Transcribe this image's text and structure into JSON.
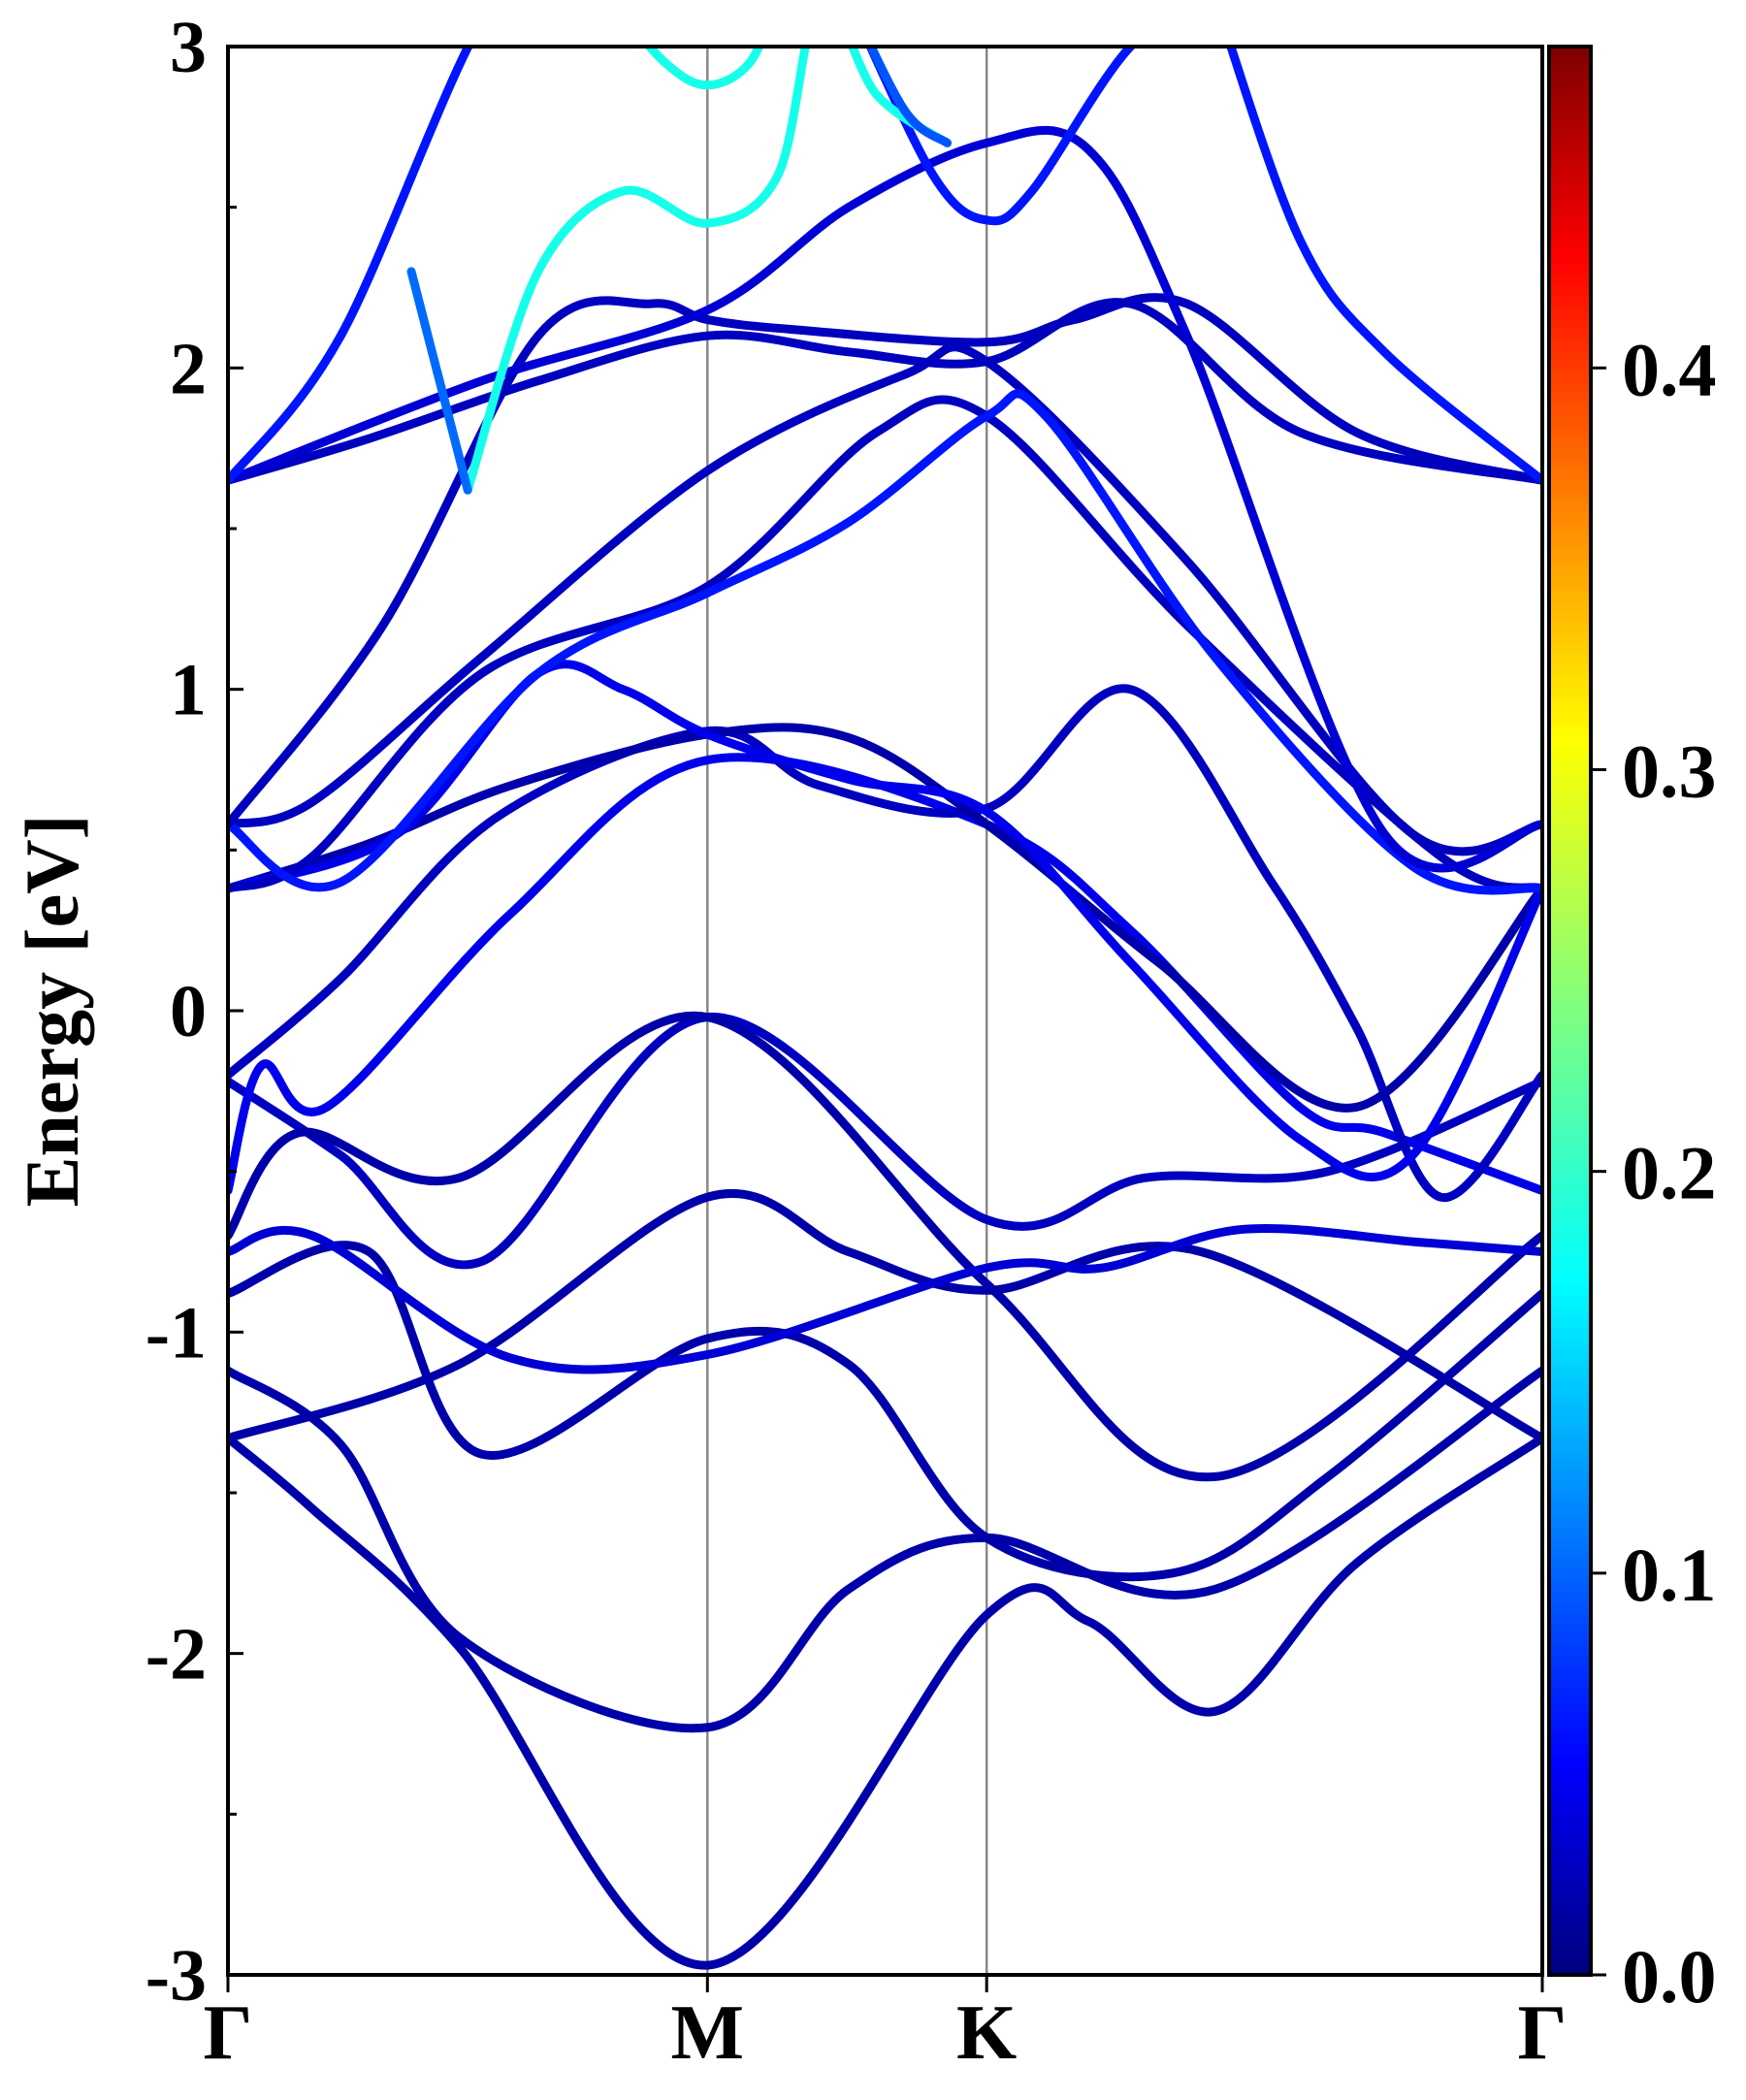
{
  "chart_data": {
    "type": "line",
    "ylabel": "Energy [eV]",
    "ylim": [
      -3,
      3
    ],
    "y_ticks": [
      "-3",
      "-2",
      "-1",
      "0",
      "1",
      "2",
      "3"
    ],
    "x_range": [
      0,
      4.66
    ],
    "x_ticks": [
      {
        "label": "Γ",
        "x": 0
      },
      {
        "label": "M",
        "x": 1.7
      },
      {
        "label": "K",
        "x": 2.69
      },
      {
        "label": "Γ",
        "x": 4.66
      }
    ],
    "colorbar": {
      "min": 0.0,
      "max": 0.48,
      "ticks": [
        "0.0",
        "0.1",
        "0.2",
        "0.3",
        "0.4"
      ],
      "colormap": "jet"
    },
    "series": [
      {
        "c": 0.02,
        "x": [
          0,
          0.82,
          1.7,
          2.2,
          2.69,
          3.45,
          4.66
        ],
        "y": [
          -1.33,
          -1.1,
          -0.58,
          -0.75,
          -0.87,
          -0.75,
          -1.33
        ]
      },
      {
        "c": 0.02,
        "x": [
          0,
          0.4,
          0.82,
          1.7,
          2.2,
          2.69,
          3.5,
          4.66
        ],
        "y": [
          -1.12,
          -1.35,
          -1.95,
          -2.23,
          -1.8,
          -1.64,
          -1.8,
          -1.12
        ]
      },
      {
        "c": 0.02,
        "x": [
          0,
          0.3,
          0.82,
          1.7,
          2.69,
          3.05,
          3.5,
          4.0,
          4.66
        ],
        "y": [
          -1.33,
          -1.55,
          -1.98,
          -2.97,
          -1.88,
          -1.9,
          -2.18,
          -1.72,
          -1.33
        ]
      },
      {
        "c": 0.02,
        "x": [
          0,
          0.5,
          0.9,
          1.7,
          2.2,
          2.69,
          3.35,
          3.9,
          4.66
        ],
        "y": [
          -0.88,
          -0.75,
          -1.38,
          -1.02,
          -1.1,
          -1.64,
          -1.75,
          -1.45,
          -0.88
        ]
      },
      {
        "c": 0.03,
        "x": [
          0,
          0.4,
          0.9,
          1.7,
          2.69,
          3.25,
          3.9,
          4.66
        ],
        "y": [
          -0.22,
          -0.45,
          -0.78,
          -0.02,
          -0.65,
          -0.52,
          -0.5,
          -0.22
        ]
      },
      {
        "c": 0.02,
        "x": [
          0,
          0.25,
          0.82,
          1.7,
          2.69,
          3.5,
          4.66
        ],
        "y": [
          -0.7,
          -0.38,
          -0.52,
          -0.02,
          -0.85,
          -1.45,
          -0.7
        ]
      },
      {
        "c": 0.04,
        "x": [
          0,
          0.3,
          1.0,
          1.7,
          2.69,
          3.1,
          3.6,
          4.22,
          4.66
        ],
        "y": [
          -0.75,
          -0.7,
          -1.08,
          -1.07,
          -0.8,
          -0.8,
          -0.68,
          -0.72,
          -0.75
        ]
      },
      {
        "c": 0.05,
        "x": [
          0,
          0.12,
          0.35,
          1.0,
          1.7,
          2.69,
          3.2,
          3.8,
          4.1,
          4.66
        ],
        "y": [
          -0.56,
          -0.17,
          -0.3,
          0.3,
          0.78,
          0.58,
          0.25,
          -0.3,
          -0.38,
          -0.56
        ]
      },
      {
        "c": 0.03,
        "x": [
          0,
          0.4,
          0.95,
          1.7,
          2.1,
          2.69,
          3.2,
          3.7,
          4.0,
          4.3,
          4.66
        ],
        "y": [
          -0.2,
          0.1,
          0.6,
          0.87,
          0.7,
          0.63,
          1.0,
          0.4,
          -0.05,
          -0.58,
          -0.2
        ]
      },
      {
        "c": 0.02,
        "x": [
          0,
          0.5,
          1.0,
          1.7,
          2.2,
          2.69,
          3.3,
          4.0,
          4.66
        ],
        "y": [
          0.38,
          0.52,
          0.7,
          0.86,
          0.85,
          0.58,
          0.15,
          -0.3,
          0.38
        ]
      },
      {
        "c": 0.05,
        "x": [
          0,
          0.6,
          1.1,
          1.4,
          1.7,
          2.2,
          2.69,
          3.2,
          3.8,
          4.2,
          4.66
        ],
        "y": [
          0.38,
          0.55,
          1.05,
          1.0,
          0.86,
          0.72,
          0.62,
          0.15,
          -0.4,
          -0.45,
          0.38
        ]
      },
      {
        "c": 0.03,
        "x": [
          0,
          0.3,
          0.9,
          1.7,
          2.4,
          2.69,
          3.4,
          4.2,
          4.66
        ],
        "y": [
          0.58,
          0.65,
          1.1,
          1.68,
          1.98,
          2.02,
          1.4,
          0.55,
          0.58
        ]
      },
      {
        "c": 0.03,
        "x": [
          0,
          0.3,
          0.9,
          1.7,
          2.3,
          2.69,
          3.4,
          4.3,
          4.66
        ],
        "y": [
          0.38,
          0.48,
          1.05,
          1.32,
          1.8,
          1.85,
          1.2,
          0.48,
          0.38
        ]
      },
      {
        "c": 0.07,
        "x": [
          0,
          0.4,
          1.1,
          1.7,
          2.2,
          2.69,
          2.9,
          3.5,
          4.2,
          4.66
        ],
        "y": [
          0.58,
          0.4,
          1.05,
          1.3,
          1.52,
          1.85,
          1.85,
          1.1,
          0.45,
          0.38
        ]
      },
      {
        "c": 0.03,
        "x": [
          0,
          0.5,
          1.1,
          1.7,
          2.2,
          2.69,
          3.2,
          3.8,
          4.66
        ],
        "y": [
          1.65,
          1.78,
          1.96,
          2.1,
          2.05,
          2.02,
          2.2,
          1.8,
          1.65
        ]
      },
      {
        "c": 0.03,
        "x": [
          0,
          0.55,
          1.1,
          1.5,
          1.7,
          2.0,
          2.69,
          3.0,
          3.4,
          4.0,
          4.66
        ],
        "y": [
          0.58,
          1.2,
          2.1,
          2.2,
          2.15,
          2.12,
          2.08,
          2.15,
          2.2,
          1.8,
          1.65
        ]
      },
      {
        "c": 0.04,
        "x": [
          0,
          0.9,
          1.7,
          2.2,
          2.69,
          3.05,
          3.4,
          4.1,
          4.66
        ],
        "y": [
          1.65,
          1.96,
          2.18,
          2.5,
          2.7,
          2.68,
          2.1,
          0.55,
          0.58
        ]
      },
      {
        "c": 0.07,
        "x": [
          0,
          0.4,
          0.95,
          1.3,
          1.75
        ],
        "y": [
          1.65,
          2.1,
          3.15,
          3.15,
          3.15
        ]
      },
      {
        "c": 0.07,
        "x": [
          2.2,
          2.5,
          2.69,
          2.85,
          3.2,
          3.5
        ],
        "y": [
          3.15,
          2.6,
          2.46,
          2.55,
          3.0,
          3.15
        ]
      },
      {
        "c": 0.07,
        "x": [
          3.5,
          3.8,
          4.1,
          4.66
        ],
        "y": [
          3.15,
          2.4,
          2.05,
          1.65
        ]
      },
      {
        "c": 0.19,
        "x": [
          0.85,
          1.1,
          1.4,
          1.7,
          1.95,
          2.1,
          2.3,
          2.55
        ],
        "y": [
          1.62,
          2.3,
          2.55,
          2.45,
          2.6,
          3.15,
          2.85,
          2.7
        ]
      },
      {
        "c": 0.19,
        "x": [
          1.35,
          1.55,
          1.7,
          1.85,
          1.95
        ],
        "y": [
          3.15,
          2.95,
          2.88,
          2.95,
          3.15
        ]
      },
      {
        "c": 0.1,
        "x": [
          2.2,
          2.4,
          2.55
        ],
        "y": [
          3.15,
          2.8,
          2.7
        ]
      },
      {
        "c": 0.11,
        "x": [
          0.65,
          0.85
        ],
        "y": [
          2.3,
          1.62
        ]
      }
    ]
  }
}
